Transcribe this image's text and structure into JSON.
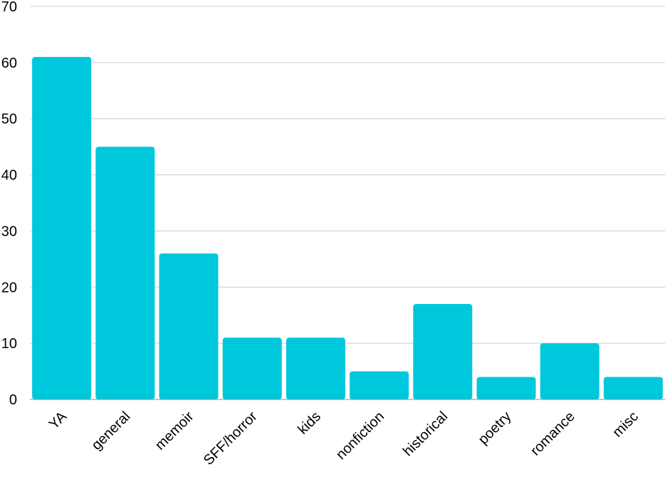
{
  "chart_data": {
    "type": "bar",
    "categories": [
      "YA",
      "general",
      "memoir",
      "SFF/horror",
      "kids",
      "nonfiction",
      "historical",
      "poetry",
      "romance",
      "misc"
    ],
    "values": [
      61,
      45,
      26,
      11,
      11,
      5,
      17,
      4,
      10,
      4
    ],
    "title": "",
    "xlabel": "",
    "ylabel": "",
    "ylim": [
      0,
      70
    ],
    "yticks": [
      0,
      10,
      20,
      30,
      40,
      50,
      60,
      70
    ],
    "grid": true,
    "legend": "none",
    "bar_color": "#00c8dc"
  }
}
